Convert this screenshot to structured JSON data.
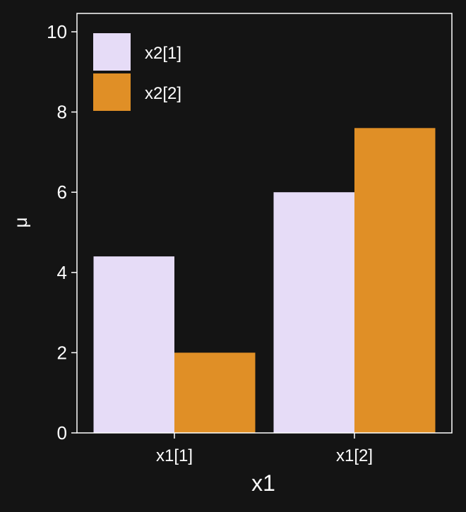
{
  "chart_data": {
    "type": "bar",
    "xlabel": "x1",
    "ylabel": "μ",
    "categories": [
      "x1[1]",
      "x1[2]"
    ],
    "series": [
      {
        "name": "x2[1]",
        "values": [
          4.4,
          6.0
        ],
        "color": "#e6dcf7"
      },
      {
        "name": "x2[2]",
        "values": [
          2.0,
          7.6
        ],
        "color": "#e08f26"
      }
    ],
    "ylim": [
      0,
      10.5
    ],
    "yticks": [
      0,
      2,
      4,
      6,
      8,
      10
    ],
    "grid": false,
    "legend_position": "top-left",
    "colors": {
      "background": "#141414",
      "panel_border": "#ffffff",
      "text": "#ffffff"
    }
  }
}
